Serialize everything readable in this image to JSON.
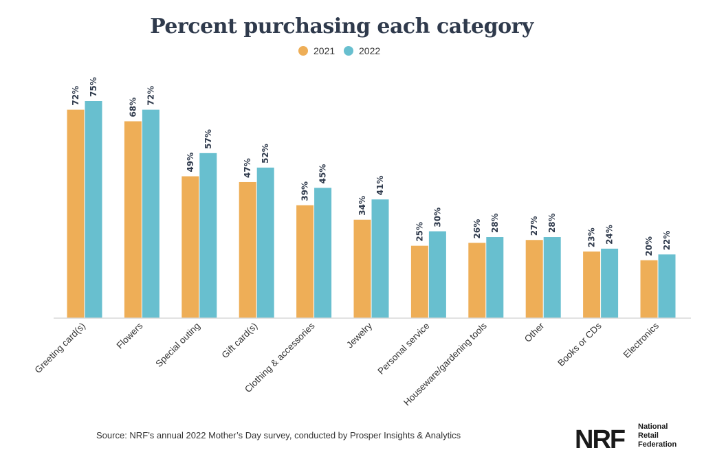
{
  "colors": {
    "y2021": "#eeae57",
    "y2022": "#68bfcf",
    "axis": "#d9d9d9",
    "title": "#2f3a4c"
  },
  "chart_data": {
    "type": "bar",
    "title": "Percent purchasing each category",
    "categories": [
      "Greeting card(s)",
      "Flowers",
      "Special outing",
      "Gift card(s)",
      "Clothing & accessories",
      "Jewelry",
      "Personal service",
      "Houseware/gardening tools",
      "Other",
      "Books or CDs",
      "Electronics"
    ],
    "series": [
      {
        "name": "2021",
        "values": [
          72,
          68,
          49,
          47,
          39,
          34,
          25,
          26,
          27,
          23,
          20
        ]
      },
      {
        "name": "2022",
        "values": [
          75,
          72,
          57,
          52,
          45,
          41,
          30,
          28,
          28,
          24,
          22
        ]
      }
    ],
    "value_suffix": "%",
    "ylim": [
      0,
      75
    ],
    "grid": false,
    "legend_position": "top-center"
  },
  "source": "Source: NRF’s annual 2022 Mother’s Day survey, conducted by Prosper Insights & Analytics",
  "logo": {
    "mark": "NRF",
    "line1": "National",
    "line2": "Retail",
    "line3": "Federation"
  }
}
